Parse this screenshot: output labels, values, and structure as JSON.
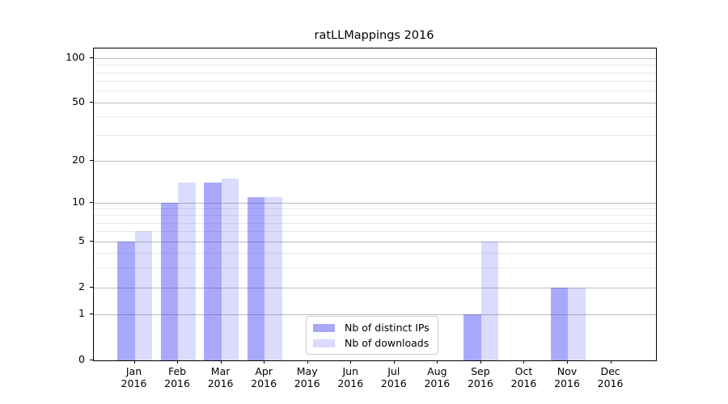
{
  "title": "ratLLMappings 2016",
  "chart_data": {
    "type": "bar",
    "title": "ratLLMappings 2016",
    "categories": [
      "Jan",
      "Feb",
      "Mar",
      "Apr",
      "May",
      "Jun",
      "Jul",
      "Aug",
      "Sep",
      "Oct",
      "Nov",
      "Dec"
    ],
    "year_label": "2016",
    "series": [
      {
        "name": "Nb of distinct IPs",
        "color": "rgba(55,55,245,0.43)",
        "values": [
          5,
          10,
          14,
          11,
          0,
          0,
          0,
          0,
          1,
          0,
          2,
          0
        ]
      },
      {
        "name": "Nb of downloads",
        "color": "rgba(55,55,245,0.18)",
        "values": [
          6,
          14,
          15,
          11,
          0,
          0,
          0,
          0,
          5,
          0,
          2,
          0
        ]
      }
    ],
    "yticks": [
      0,
      1,
      2,
      5,
      10,
      20,
      50,
      100
    ],
    "minor_gridlines": [
      3,
      4,
      6,
      7,
      8,
      9,
      30,
      40,
      60,
      70,
      80,
      90
    ],
    "yscale": "log-like",
    "ylim": [
      0,
      115
    ],
    "grid": true,
    "legend_position": "lower center"
  },
  "colors": {
    "bar_distinct_ips": "rgba(55,55,245,0.43)",
    "bar_downloads": "rgba(55,55,245,0.18)",
    "major_gridline": "#bcbcbc",
    "minor_gridline": "#e9e9e9",
    "axis_line": "#000000",
    "legend_border": "#cccccc",
    "text": "#000000"
  }
}
